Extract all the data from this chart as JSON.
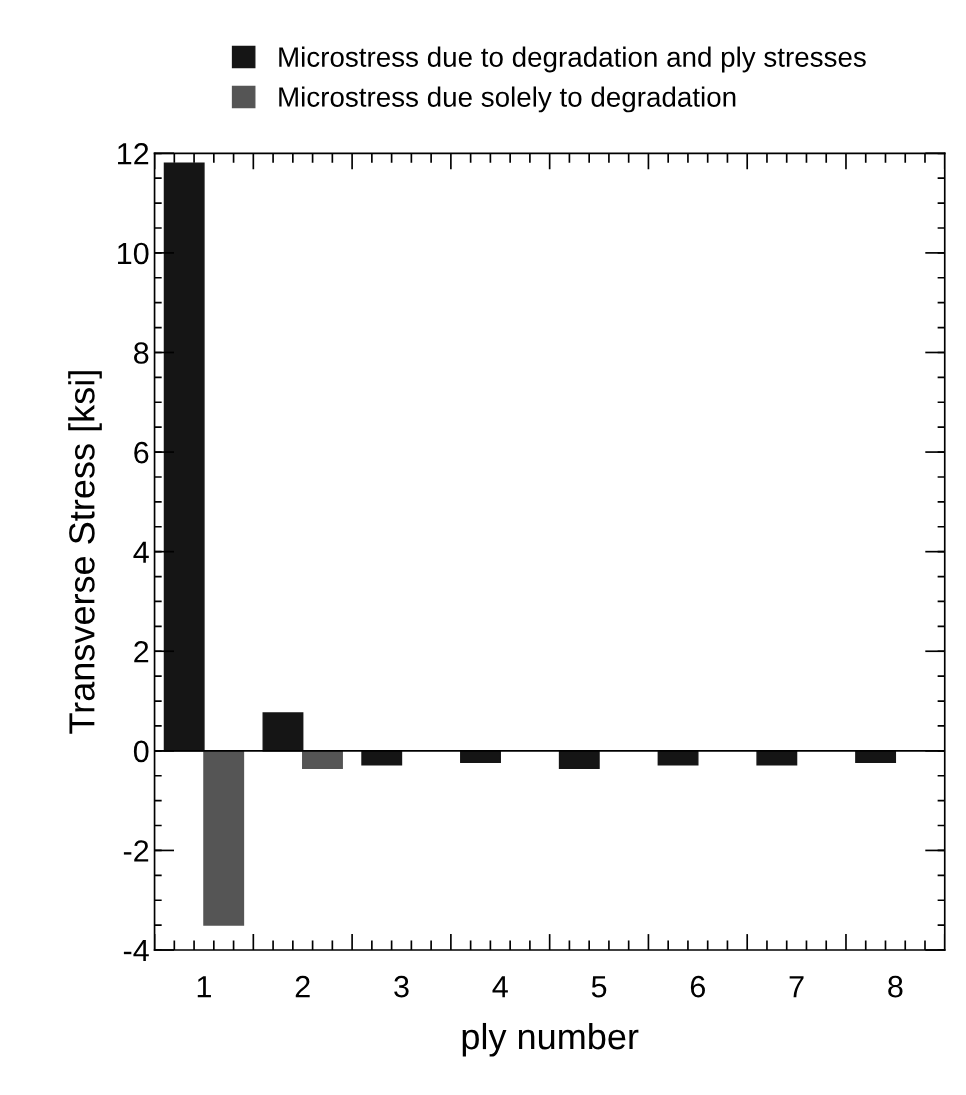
{
  "chart_data": {
    "type": "bar",
    "xlabel": "ply number",
    "ylabel": "Transverse Stress [ksi]",
    "categories": [
      "1",
      "2",
      "3",
      "4",
      "5",
      "6",
      "7",
      "8"
    ],
    "series": [
      {
        "name": "Microstress due to degradation and ply stresses",
        "color": "#151515",
        "values": [
          11.8,
          0.76,
          -0.28,
          -0.23,
          -0.35,
          -0.28,
          -0.28,
          -0.23
        ]
      },
      {
        "name": "Microstress due solely to degradation",
        "color": "#555555",
        "values": [
          -3.5,
          -0.35,
          null,
          null,
          null,
          null,
          null,
          null
        ]
      }
    ],
    "ylim": [
      -4,
      12
    ],
    "yticks": [
      -4,
      -2,
      0,
      2,
      4,
      6,
      8,
      10,
      12
    ],
    "grid": false,
    "ref_lines": [
      {
        "axis": "y",
        "value": 0,
        "color": "#000000"
      }
    ],
    "legend": "top"
  }
}
